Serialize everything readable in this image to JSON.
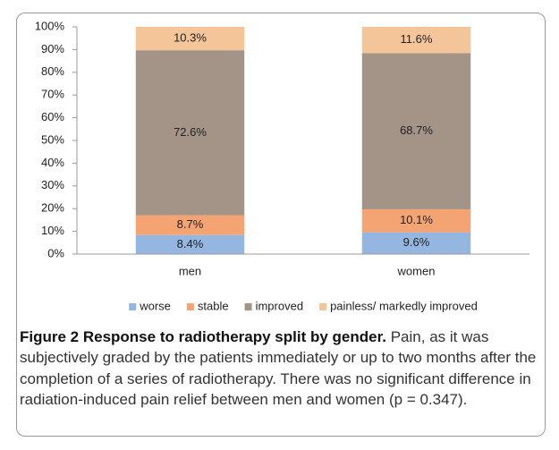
{
  "chart_data": {
    "type": "stacked_bar",
    "categories": [
      "men",
      "women"
    ],
    "series": [
      {
        "name": "worse",
        "color": "#95b6e0",
        "values": [
          8.4,
          9.6
        ],
        "value_labels": [
          "8.4%",
          "9.6%"
        ]
      },
      {
        "name": "stable",
        "color": "#f4a472",
        "values": [
          8.7,
          10.1
        ],
        "value_labels": [
          "8.7%",
          "10.1%"
        ]
      },
      {
        "name": "improved",
        "color": "#a39487",
        "values": [
          72.6,
          68.7
        ],
        "value_labels": [
          "72.6%",
          "68.7%"
        ]
      },
      {
        "name": "painless/ markedly improved",
        "color": "#f5c59a",
        "values": [
          10.3,
          11.6
        ],
        "value_labels": [
          "10.3%",
          "11.6%"
        ]
      }
    ],
    "ylim": [
      0,
      100
    ],
    "yticks": [
      {
        "value": 0,
        "label": "0%"
      },
      {
        "value": 10,
        "label": "10%"
      },
      {
        "value": 20,
        "label": "20%"
      },
      {
        "value": 30,
        "label": "30%"
      },
      {
        "value": 40,
        "label": "40%"
      },
      {
        "value": 50,
        "label": "50%"
      },
      {
        "value": 60,
        "label": "60%"
      },
      {
        "value": 70,
        "label": "70%"
      },
      {
        "value": 80,
        "label": "80%"
      },
      {
        "value": 90,
        "label": "90%"
      },
      {
        "value": 100,
        "label": "100%"
      }
    ],
    "legend": "bottom"
  },
  "caption": {
    "label": "Figure 2 Response to radiotherapy split by gender.",
    "text": "Pain, as it was subjectively graded by the patients immediately or up to two months after the completion of a series of radiotherapy. There was no significant difference in radiation-induced pain relief between men and women (p = 0.347)."
  }
}
